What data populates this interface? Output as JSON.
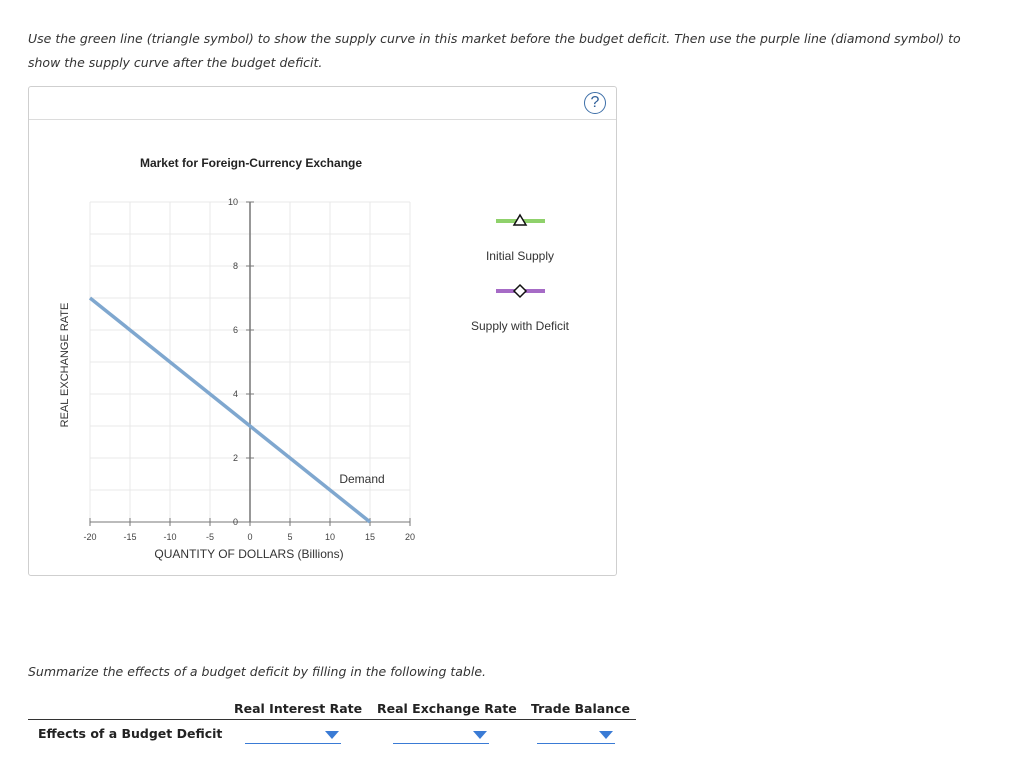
{
  "instructions": "Use the green line (triangle symbol) to show the supply curve in this market before the budget deficit. Then use the purple line (diamond symbol) to show the supply curve after the budget deficit.",
  "help_label": "?",
  "chart_data": {
    "type": "line",
    "title": "Market for Foreign-Currency Exchange",
    "xlabel": "QUANTITY OF DOLLARS (Billions)",
    "ylabel": "REAL EXCHANGE RATE",
    "xlim": [
      -20,
      20
    ],
    "ylim": [
      0,
      10
    ],
    "x_ticks": [
      -20,
      -15,
      -10,
      -5,
      0,
      5,
      10,
      15,
      20
    ],
    "y_ticks": [
      0,
      2,
      4,
      6,
      8,
      10
    ],
    "grid": true,
    "series": [
      {
        "name": "Demand",
        "x": [
          -20,
          15
        ],
        "y": [
          7,
          0
        ],
        "color": "#7fa7cf"
      }
    ]
  },
  "legend": {
    "initial_supply": {
      "label": "Initial Supply",
      "color": "#8fd16b"
    },
    "supply_with_deficit": {
      "label": "Supply with Deficit",
      "color": "#a66bc6"
    }
  },
  "summary_text": "Summarize the effects of a budget deficit by filling in the following table.",
  "table": {
    "columns": [
      "Real Interest Rate",
      "Real Exchange Rate",
      "Trade Balance"
    ],
    "row_label": "Effects of a Budget Deficit",
    "selections": [
      "",
      "",
      ""
    ]
  }
}
